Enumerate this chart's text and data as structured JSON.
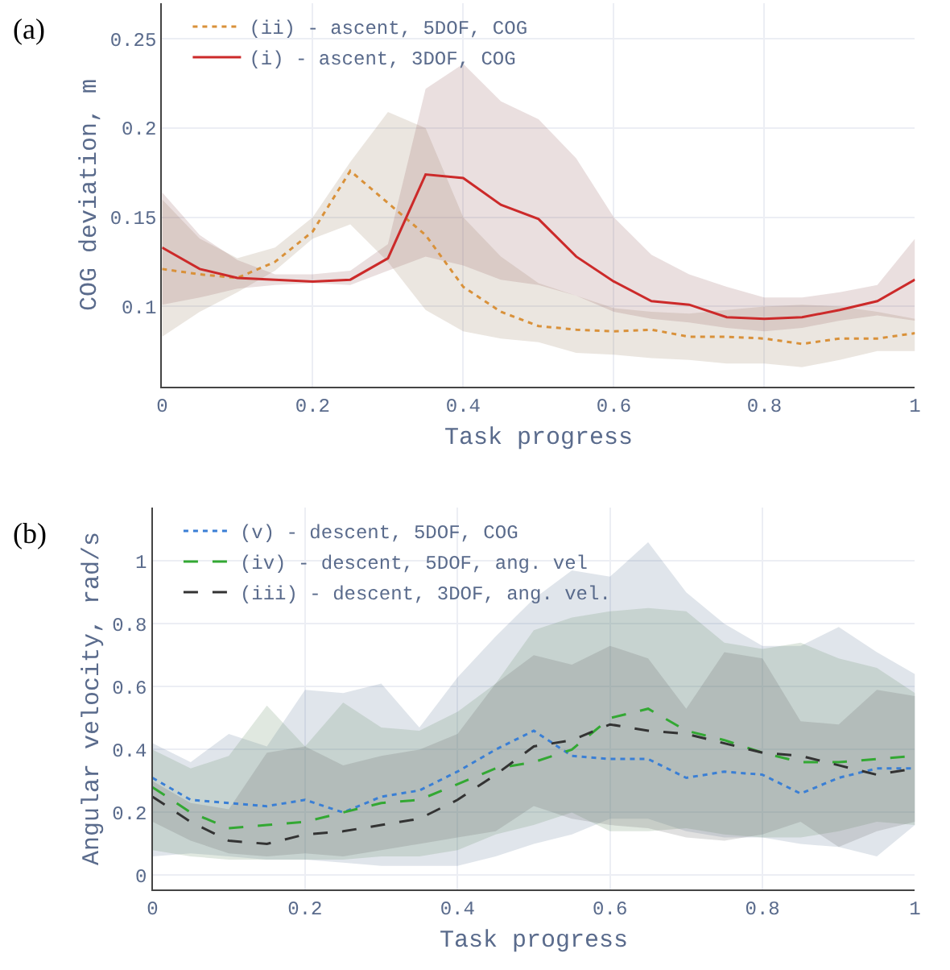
{
  "chart_data": [
    {
      "type": "line",
      "title": "(a)",
      "xlabel": "Task progress",
      "ylabel": "COG deviation, m",
      "xlim": [
        0,
        1
      ],
      "xticks": [
        0,
        0.2,
        0.4,
        0.6,
        0.8,
        1
      ],
      "ylim": [
        0.055,
        0.27
      ],
      "yticks": [
        0.1,
        0.15,
        0.2,
        0.25
      ],
      "grid": true,
      "legend": "top left",
      "x": [
        0,
        0.05,
        0.1,
        0.15,
        0.2,
        0.25,
        0.3,
        0.35,
        0.4,
        0.45,
        0.5,
        0.55,
        0.6,
        0.65,
        0.7,
        0.75,
        0.8,
        0.85,
        0.9,
        0.95,
        1
      ],
      "series": [
        {
          "name": "(ii) - ascent, 5DOF, COG",
          "color": "#d9913a",
          "line_style": "dotted",
          "values": [
            0.121,
            0.118,
            0.116,
            0.125,
            0.142,
            0.176,
            0.158,
            0.14,
            0.111,
            0.097,
            0.089,
            0.087,
            0.086,
            0.087,
            0.083,
            0.083,
            0.082,
            0.079,
            0.082,
            0.082,
            0.085
          ],
          "lower": [
            0.083,
            0.097,
            0.108,
            0.12,
            0.138,
            0.146,
            0.125,
            0.098,
            0.086,
            0.082,
            0.08,
            0.074,
            0.073,
            0.071,
            0.07,
            0.068,
            0.068,
            0.066,
            0.07,
            0.075,
            0.075
          ],
          "upper": [
            0.16,
            0.138,
            0.127,
            0.133,
            0.15,
            0.181,
            0.209,
            0.2,
            0.15,
            0.128,
            0.113,
            0.106,
            0.099,
            0.097,
            0.096,
            0.098,
            0.1,
            0.101,
            0.1,
            0.097,
            0.093
          ]
        },
        {
          "name": "(i) - ascent, 3DOF, COG",
          "color": "#cc2a2a",
          "line_style": "solid",
          "values": [
            0.133,
            0.121,
            0.116,
            0.115,
            0.114,
            0.115,
            0.127,
            0.174,
            0.172,
            0.157,
            0.149,
            0.128,
            0.114,
            0.103,
            0.101,
            0.094,
            0.093,
            0.094,
            0.098,
            0.103,
            0.115
          ],
          "lower": [
            0.101,
            0.105,
            0.11,
            0.112,
            0.113,
            0.112,
            0.12,
            0.128,
            0.123,
            0.115,
            0.112,
            0.106,
            0.097,
            0.093,
            0.091,
            0.088,
            0.086,
            0.088,
            0.092,
            0.095,
            0.092
          ],
          "upper": [
            0.164,
            0.14,
            0.126,
            0.118,
            0.118,
            0.12,
            0.135,
            0.222,
            0.236,
            0.215,
            0.205,
            0.183,
            0.15,
            0.129,
            0.118,
            0.111,
            0.105,
            0.105,
            0.108,
            0.112,
            0.138
          ]
        }
      ]
    },
    {
      "type": "line",
      "title": "(b)",
      "xlabel": "Task progress",
      "ylabel": "Angular velocity, rad/s",
      "xlim": [
        0,
        1
      ],
      "xticks": [
        0,
        0.2,
        0.4,
        0.6,
        0.8,
        1
      ],
      "ylim": [
        -0.045,
        1.17
      ],
      "yticks": [
        0,
        0.2,
        0.4,
        0.6,
        0.8,
        1
      ],
      "grid": true,
      "legend": "top left",
      "x": [
        0,
        0.05,
        0.1,
        0.15,
        0.2,
        0.25,
        0.3,
        0.35,
        0.4,
        0.45,
        0.5,
        0.55,
        0.6,
        0.65,
        0.7,
        0.75,
        0.8,
        0.85,
        0.9,
        0.95,
        1
      ],
      "series": [
        {
          "name": "(v) - descent, 5DOF, COG",
          "color": "#3a7fd5",
          "line_style": "dotted",
          "values": [
            0.31,
            0.24,
            0.23,
            0.22,
            0.24,
            0.2,
            0.25,
            0.27,
            0.33,
            0.4,
            0.46,
            0.38,
            0.37,
            0.37,
            0.31,
            0.33,
            0.32,
            0.26,
            0.31,
            0.34,
            0.34
          ],
          "lower": [
            0.06,
            0.07,
            0.06,
            0.05,
            0.05,
            0.04,
            0.03,
            0.03,
            0.03,
            0.06,
            0.1,
            0.13,
            0.18,
            0.18,
            0.14,
            0.12,
            0.12,
            0.1,
            0.09,
            0.06,
            0.16
          ],
          "upper": [
            0.42,
            0.36,
            0.45,
            0.41,
            0.59,
            0.58,
            0.61,
            0.47,
            0.63,
            0.76,
            0.88,
            0.97,
            0.95,
            1.06,
            0.9,
            0.8,
            0.73,
            0.73,
            0.79,
            0.71,
            0.64
          ]
        },
        {
          "name": "(iv) - descent, 5DOF, ang. vel",
          "color": "#33a833",
          "line_style": "dashed",
          "values": [
            0.28,
            0.2,
            0.15,
            0.16,
            0.17,
            0.2,
            0.23,
            0.24,
            0.29,
            0.34,
            0.36,
            0.4,
            0.5,
            0.53,
            0.46,
            0.43,
            0.39,
            0.36,
            0.36,
            0.37,
            0.38
          ],
          "lower": [
            0.08,
            0.06,
            0.05,
            0.05,
            0.05,
            0.05,
            0.06,
            0.06,
            0.08,
            0.13,
            0.16,
            0.2,
            0.14,
            0.14,
            0.15,
            0.13,
            0.12,
            0.12,
            0.14,
            0.17,
            0.16
          ],
          "upper": [
            0.4,
            0.34,
            0.38,
            0.54,
            0.41,
            0.55,
            0.47,
            0.46,
            0.52,
            0.61,
            0.78,
            0.82,
            0.84,
            0.85,
            0.84,
            0.74,
            0.72,
            0.74,
            0.69,
            0.66,
            0.58
          ]
        },
        {
          "name": "(iii) - descent, 3DOF, ang. vel.",
          "color": "#333333",
          "line_style": "dashed",
          "values": [
            0.25,
            0.17,
            0.11,
            0.1,
            0.13,
            0.14,
            0.16,
            0.18,
            0.24,
            0.32,
            0.41,
            0.43,
            0.48,
            0.46,
            0.45,
            0.42,
            0.39,
            0.38,
            0.35,
            0.32,
            0.34
          ],
          "lower": [
            0.17,
            0.11,
            0.07,
            0.06,
            0.07,
            0.06,
            0.08,
            0.1,
            0.12,
            0.14,
            0.22,
            0.18,
            0.16,
            0.15,
            0.12,
            0.11,
            0.13,
            0.17,
            0.09,
            0.14,
            0.17
          ],
          "upper": [
            0.3,
            0.23,
            0.21,
            0.39,
            0.41,
            0.35,
            0.38,
            0.4,
            0.45,
            0.61,
            0.7,
            0.67,
            0.73,
            0.69,
            0.53,
            0.71,
            0.69,
            0.49,
            0.48,
            0.59,
            0.57
          ]
        }
      ]
    }
  ]
}
